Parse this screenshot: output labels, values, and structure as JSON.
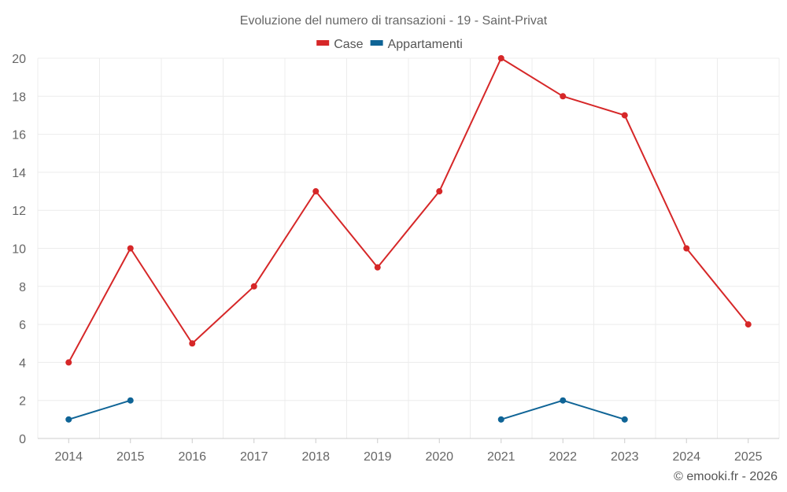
{
  "chart_data": {
    "type": "line",
    "title": "Evoluzione del numero di transazioni - 19 - Saint-Privat",
    "xlabel": "",
    "ylabel": "",
    "categories": [
      "2014",
      "2015",
      "2016",
      "2017",
      "2018",
      "2019",
      "2020",
      "2021",
      "2022",
      "2023",
      "2024",
      "2025"
    ],
    "ylim": [
      0,
      20
    ],
    "yticks": [
      0,
      2,
      4,
      6,
      8,
      10,
      12,
      14,
      16,
      18,
      20
    ],
    "grid": true,
    "legend": "top-center",
    "series": [
      {
        "name": "Case",
        "color": "#d62728",
        "values": [
          4,
          10,
          5,
          8,
          13,
          9,
          13,
          20,
          18,
          17,
          10,
          6
        ]
      },
      {
        "name": "Appartamenti",
        "color": "#0f6496",
        "values": [
          1,
          2,
          null,
          null,
          null,
          null,
          null,
          1,
          2,
          1,
          null,
          null
        ]
      }
    ]
  },
  "credit": "© emooki.fr - 2026"
}
